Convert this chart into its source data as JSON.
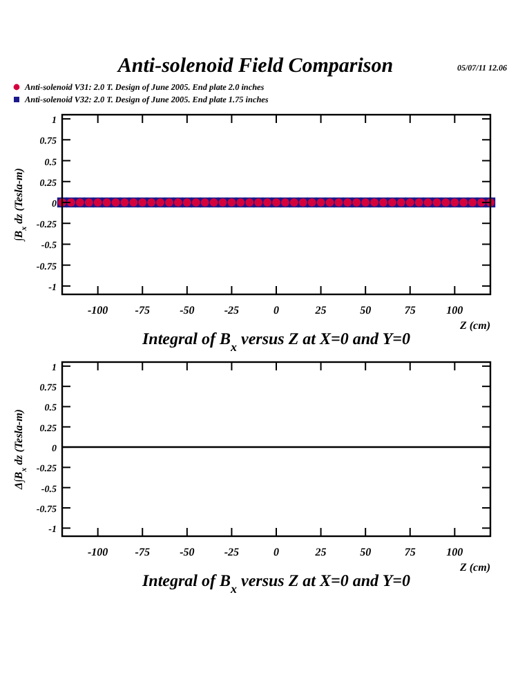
{
  "chart_data": [
    {
      "type": "scatter",
      "title": "Anti-solenoid Field Comparison",
      "subtitle": "Integral of B$_{x}$ versus Z at X=0 and Y=0",
      "xlabel": "Z (cm)",
      "ylabel": "∫B$_{x}$ dz  (Tesla-m)",
      "annotations": [
        "05/07/11  12.06"
      ],
      "legend": "top left",
      "xlim": [
        -120,
        120
      ],
      "ylim": [
        -1.1,
        1.05
      ],
      "xticks": [
        -100,
        -75,
        -50,
        -25,
        0,
        25,
        50,
        75,
        100
      ],
      "yticks": [
        -1,
        -0.75,
        -0.5,
        -0.25,
        0,
        0.25,
        0.5,
        0.75,
        1
      ],
      "x": [
        -120,
        -115,
        -110,
        -105,
        -100,
        -95,
        -90,
        -85,
        -80,
        -75,
        -70,
        -65,
        -60,
        -55,
        -50,
        -45,
        -40,
        -35,
        -30,
        -25,
        -20,
        -15,
        -10,
        -5,
        0,
        5,
        10,
        15,
        20,
        25,
        30,
        35,
        40,
        45,
        50,
        55,
        60,
        65,
        70,
        75,
        80,
        85,
        90,
        95,
        100,
        105,
        110,
        115,
        120
      ],
      "series": [
        {
          "name": "Anti-solenoid V31: 2.0 T. Design of June 2005. End plate 2.0 inches",
          "color": "#d4003c",
          "marker": "circle",
          "values": [
            0,
            0,
            0,
            0,
            0,
            0,
            0,
            0,
            0,
            0,
            0,
            0,
            0,
            0,
            0,
            0,
            0,
            0,
            0,
            0,
            0,
            0,
            0,
            0,
            0,
            0,
            0,
            0,
            0,
            0,
            0,
            0,
            0,
            0,
            0,
            0,
            0,
            0,
            0,
            0,
            0,
            0,
            0,
            0,
            0,
            0,
            0,
            0,
            0
          ]
        },
        {
          "name": "Anti-solenoid V32: 2.0 T. Design of June 2005. End plate 1.75 inches",
          "color": "#1a1a8c",
          "marker": "square",
          "values": [
            0,
            0,
            0,
            0,
            0,
            0,
            0,
            0,
            0,
            0,
            0,
            0,
            0,
            0,
            0,
            0,
            0,
            0,
            0,
            0,
            0,
            0,
            0,
            0,
            0,
            0,
            0,
            0,
            0,
            0,
            0,
            0,
            0,
            0,
            0,
            0,
            0,
            0,
            0,
            0,
            0,
            0,
            0,
            0,
            0,
            0,
            0,
            0,
            0
          ]
        }
      ]
    },
    {
      "type": "line",
      "subtitle": "Integral of B$_{x}$ versus Z at X=0 and Y=0",
      "xlabel": "Z (cm)",
      "ylabel": "Δ∫B$_{x}$ dz  (Tesla-m)",
      "legend": false,
      "xlim": [
        -120,
        120
      ],
      "ylim": [
        -1.1,
        1.05
      ],
      "xticks": [
        -100,
        -75,
        -50,
        -25,
        0,
        25,
        50,
        75,
        100
      ],
      "yticks": [
        -1,
        -0.75,
        -0.5,
        -0.25,
        0,
        0.25,
        0.5,
        0.75,
        1
      ],
      "x": [
        -120,
        120
      ],
      "series": [
        {
          "color": "#000000",
          "values": [
            0,
            0
          ]
        }
      ]
    }
  ]
}
